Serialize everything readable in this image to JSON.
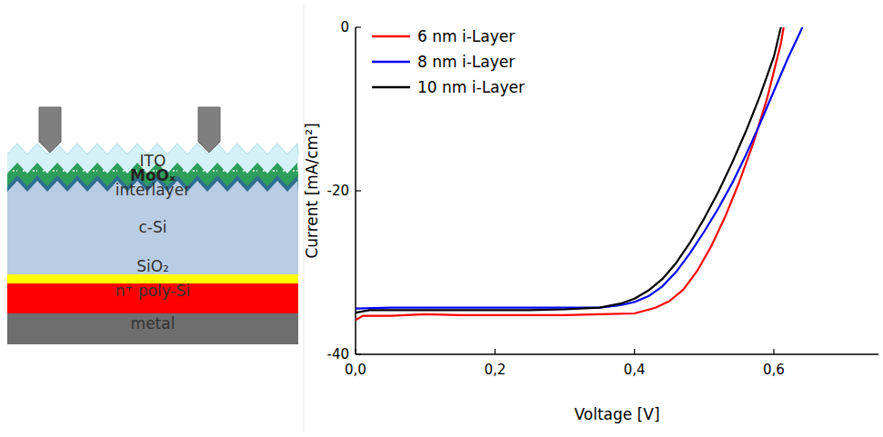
{
  "chart_data": {
    "type": "line",
    "x_label": "Voltage [V]",
    "y_label": "Current [mA/cm²]",
    "xlim": [
      0,
      0.75
    ],
    "xticks": [
      {
        "value": 0,
        "label": "0,0"
      },
      {
        "value": 0.2,
        "label": "0,2"
      },
      {
        "value": 0.4,
        "label": "0,4"
      },
      {
        "value": 0.6,
        "label": "0,6"
      }
    ],
    "ylim": [
      -40,
      0
    ],
    "yticks": [
      -40,
      -20,
      0
    ],
    "legend": "upper left",
    "grid": false,
    "series": [
      {
        "name": "6 nm i-Layer",
        "color": "#ff0000",
        "x": [
          0,
          0.01,
          0.05,
          0.1,
          0.15,
          0.2,
          0.25,
          0.3,
          0.35,
          0.4,
          0.43,
          0.45,
          0.47,
          0.49,
          0.51,
          0.53,
          0.55,
          0.57,
          0.59,
          0.61,
          0.614
        ],
        "values": [
          -35.8,
          -35.3,
          -35.3,
          -35.1,
          -35.2,
          -35.2,
          -35.2,
          -35.2,
          -35.1,
          -35.0,
          -34.3,
          -33.5,
          -32.1,
          -29.8,
          -26.8,
          -23.2,
          -19.0,
          -14.3,
          -8.8,
          -2.0,
          0
        ]
      },
      {
        "name": "8 nm i-Layer",
        "color": "#0000ff",
        "x": [
          0,
          0.05,
          0.1,
          0.15,
          0.2,
          0.25,
          0.3,
          0.35,
          0.38,
          0.4,
          0.42,
          0.44,
          0.46,
          0.48,
          0.5,
          0.52,
          0.54,
          0.56,
          0.58,
          0.6,
          0.62,
          0.641
        ],
        "values": [
          -34.4,
          -34.3,
          -34.3,
          -34.3,
          -34.3,
          -34.3,
          -34.3,
          -34.3,
          -34.0,
          -33.6,
          -32.9,
          -31.7,
          -29.9,
          -27.6,
          -25.0,
          -22.2,
          -19.1,
          -15.6,
          -11.8,
          -7.8,
          -3.8,
          0
        ]
      },
      {
        "name": "10 nm i-Layer",
        "color": "#000000",
        "x": [
          0,
          0.02,
          0.05,
          0.1,
          0.15,
          0.2,
          0.25,
          0.3,
          0.35,
          0.38,
          0.4,
          0.42,
          0.44,
          0.46,
          0.48,
          0.5,
          0.52,
          0.54,
          0.56,
          0.58,
          0.6,
          0.61
        ],
        "values": [
          -34.9,
          -34.6,
          -34.6,
          -34.6,
          -34.6,
          -34.6,
          -34.6,
          -34.5,
          -34.3,
          -33.8,
          -33.2,
          -32.2,
          -30.8,
          -28.8,
          -26.3,
          -23.4,
          -20.2,
          -16.6,
          -12.7,
          -8.4,
          -3.6,
          0
        ]
      }
    ]
  },
  "diagram": {
    "layers": [
      "ITO",
      "MoOₓ",
      "interlayer",
      "c-Si",
      "SiO₂",
      "n⁺ poly-Si",
      "metal"
    ]
  }
}
